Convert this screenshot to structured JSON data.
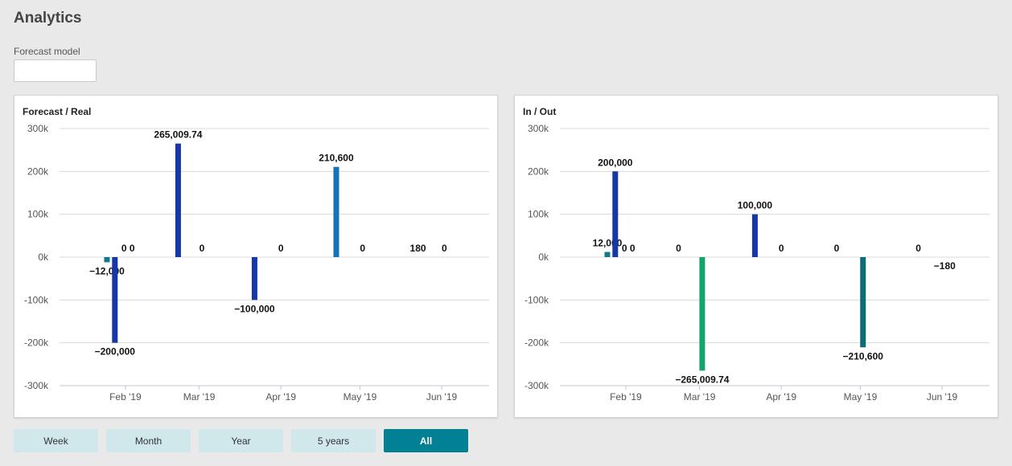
{
  "page": {
    "title": "Analytics"
  },
  "forecast_model": {
    "label": "Forecast model",
    "value": ""
  },
  "range_buttons": [
    {
      "label": "Week",
      "active": false
    },
    {
      "label": "Month",
      "active": false
    },
    {
      "label": "Year",
      "active": false
    },
    {
      "label": "5 years",
      "active": false
    },
    {
      "label": "All",
      "active": true
    }
  ],
  "colors": {
    "dark_blue": "#1638a6",
    "mid_blue": "#1573b8",
    "teal": "#0e7a8a",
    "dark_teal": "#0b6b78",
    "green": "#16a36d",
    "active_button": "#028195",
    "button": "#d0e7ec"
  },
  "chart_data": [
    {
      "type": "bar",
      "title": "Forecast / Real",
      "ylim": [
        -300000,
        300000
      ],
      "yticks": [
        300000,
        200000,
        100000,
        0,
        -100000,
        -200000,
        -300000
      ],
      "ytick_labels": [
        "300k",
        "200k",
        "100k",
        "0k",
        "-100k",
        "-200k",
        "-300k"
      ],
      "xlim": [
        "2019-01-07",
        "2019-06-19"
      ],
      "xticks": [
        {
          "date": "2019-02-01",
          "label": "Feb '19"
        },
        {
          "date": "2019-03-01",
          "label": "Mar '19"
        },
        {
          "date": "2019-04-01",
          "label": "Apr '19"
        },
        {
          "date": "2019-05-01",
          "label": "May '19"
        },
        {
          "date": "2019-06-01",
          "label": "Jun '19"
        }
      ],
      "grid": true,
      "legend": "none",
      "bars": [
        {
          "date": "2019-01-25",
          "value": -12000,
          "color": "teal",
          "label": "−12,000",
          "label_pos": "below"
        },
        {
          "date": "2019-01-28",
          "value": -200000,
          "color": "dark_blue",
          "label": "−200,000",
          "label_pos": "below"
        },
        {
          "date": "2019-02-02",
          "value": 0,
          "color": "dark_blue",
          "label": "0 0",
          "label_pos": "above"
        },
        {
          "date": "2019-02-21",
          "value": 265009.74,
          "color": "dark_blue",
          "label": "265,009.74",
          "label_pos": "above"
        },
        {
          "date": "2019-03-02",
          "value": 0,
          "color": "dark_blue",
          "label": "0",
          "label_pos": "above"
        },
        {
          "date": "2019-03-22",
          "value": -100000,
          "color": "dark_blue",
          "label": "−100,000",
          "label_pos": "below"
        },
        {
          "date": "2019-04-01",
          "value": 0,
          "color": "dark_blue",
          "label": "0",
          "label_pos": "above"
        },
        {
          "date": "2019-04-22",
          "value": 210600,
          "color": "mid_blue",
          "label": "210,600",
          "label_pos": "above"
        },
        {
          "date": "2019-05-02",
          "value": 0,
          "color": "mid_blue",
          "label": "0",
          "label_pos": "above"
        },
        {
          "date": "2019-05-23",
          "value": 180,
          "color": "mid_blue",
          "label": "180",
          "label_pos": "above"
        },
        {
          "date": "2019-06-02",
          "value": 0,
          "color": "mid_blue",
          "label": "0",
          "label_pos": "above"
        }
      ]
    },
    {
      "type": "bar",
      "title": "In / Out",
      "ylim": [
        -300000,
        300000
      ],
      "yticks": [
        300000,
        200000,
        100000,
        0,
        -100000,
        -200000,
        -300000
      ],
      "ytick_labels": [
        "300k",
        "200k",
        "100k",
        "0k",
        "-100k",
        "-200k",
        "-300k"
      ],
      "xlim": [
        "2019-01-07",
        "2019-06-19"
      ],
      "xticks": [
        {
          "date": "2019-02-01",
          "label": "Feb '19"
        },
        {
          "date": "2019-03-01",
          "label": "Mar '19"
        },
        {
          "date": "2019-04-01",
          "label": "Apr '19"
        },
        {
          "date": "2019-05-01",
          "label": "May '19"
        },
        {
          "date": "2019-06-01",
          "label": "Jun '19"
        }
      ],
      "grid": true,
      "legend": "none",
      "bars": [
        {
          "date": "2019-01-25",
          "value": 12000,
          "color": "teal",
          "label": "12,000",
          "label_pos": "above"
        },
        {
          "date": "2019-01-28",
          "value": 200000,
          "color": "dark_blue",
          "label": "200,000",
          "label_pos": "above"
        },
        {
          "date": "2019-02-02",
          "value": 0,
          "color": "dark_blue",
          "label": "0 0",
          "label_pos": "above"
        },
        {
          "date": "2019-02-21",
          "value": 0,
          "color": "dark_blue",
          "label": "0",
          "label_pos": "above"
        },
        {
          "date": "2019-03-02",
          "value": -265009.74,
          "color": "green",
          "label": "−265,009.74",
          "label_pos": "below"
        },
        {
          "date": "2019-03-22",
          "value": 100000,
          "color": "dark_blue",
          "label": "100,000",
          "label_pos": "above"
        },
        {
          "date": "2019-04-01",
          "value": 0,
          "color": "dark_blue",
          "label": "0",
          "label_pos": "above"
        },
        {
          "date": "2019-04-22",
          "value": 0,
          "color": "dark_teal",
          "label": "0",
          "label_pos": "above"
        },
        {
          "date": "2019-05-02",
          "value": -210600,
          "color": "dark_teal",
          "label": "−210,600",
          "label_pos": "below"
        },
        {
          "date": "2019-05-23",
          "value": 0,
          "color": "mid_blue",
          "label": "0",
          "label_pos": "above"
        },
        {
          "date": "2019-06-02",
          "value": -180,
          "color": "mid_blue",
          "label": "−180",
          "label_pos": "below"
        }
      ]
    }
  ]
}
